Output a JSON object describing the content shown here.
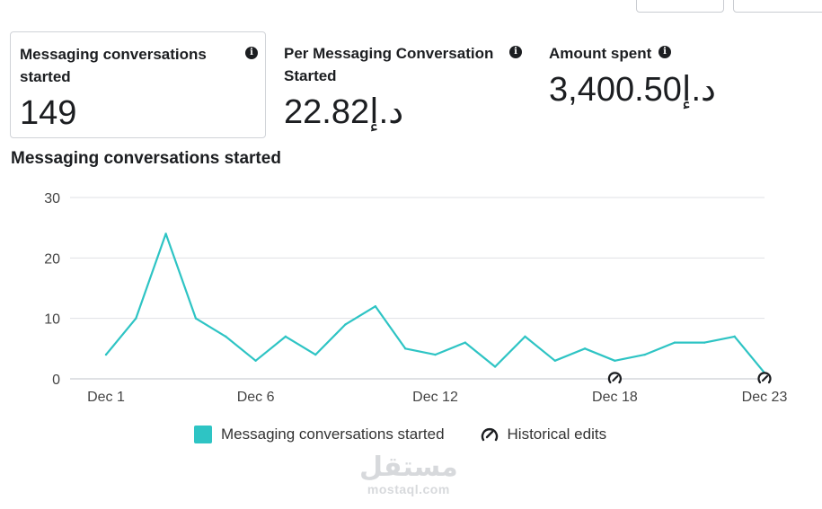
{
  "metrics": [
    {
      "title": "Messaging conversations started",
      "value": "149"
    },
    {
      "title": "Per Messaging Conversation Started",
      "value": "22.82د.إ"
    },
    {
      "title": "Amount spent",
      "value": "3,400.50د.إ"
    }
  ],
  "chart_title": "Messaging conversations started",
  "chart_data": {
    "type": "line",
    "x": [
      "Dec 1",
      "Dec 2",
      "Dec 3",
      "Dec 4",
      "Dec 5",
      "Dec 6",
      "Dec 7",
      "Dec 8",
      "Dec 9",
      "Dec 10",
      "Dec 11",
      "Dec 12",
      "Dec 13",
      "Dec 14",
      "Dec 15",
      "Dec 16",
      "Dec 17",
      "Dec 18",
      "Dec 19",
      "Dec 20",
      "Dec 21",
      "Dec 22",
      "Dec 23"
    ],
    "series": [
      {
        "name": "Messaging conversations started",
        "values": [
          4,
          10,
          24,
          10,
          7,
          3,
          7,
          4,
          9,
          12,
          5,
          4,
          6,
          2,
          7,
          3,
          5,
          3,
          4,
          6,
          6,
          7,
          1
        ]
      }
    ],
    "x_tick_labels": [
      "Dec 1",
      "Dec 6",
      "Dec 12",
      "Dec 18",
      "Dec 23"
    ],
    "y_ticks": [
      0,
      10,
      20,
      30
    ],
    "ylim": [
      0,
      30
    ],
    "grid": true,
    "historical_edit_markers": [
      "Dec 18",
      "Dec 23"
    ],
    "color": "#2ec4c4"
  },
  "legend": {
    "series_label": "Messaging conversations started",
    "historical_label": "Historical edits"
  },
  "watermark": {
    "arabic": "مستقل",
    "latin": "mostaql.com"
  }
}
